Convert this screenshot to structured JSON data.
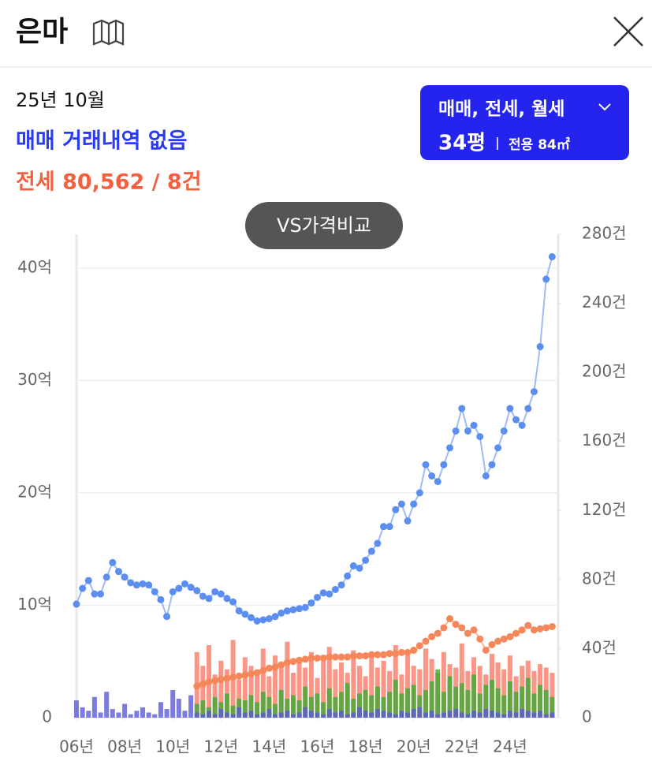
{
  "header": {
    "title": "은마"
  },
  "info": {
    "date": "25년 10월",
    "sale": "매매 거래내역 없음",
    "jeonse": "전세 80,562 / 8건"
  },
  "filter": {
    "types": "매매, 전세, 월세",
    "size": "34평",
    "area": "전용 84㎡"
  },
  "compare_button": "VS가격비교",
  "chart_data": {
    "type": "line",
    "x": [
      6,
      6.25,
      6.5,
      6.75,
      7,
      7.25,
      7.5,
      7.75,
      8,
      8.25,
      8.5,
      8.75,
      9,
      9.25,
      9.5,
      9.75,
      10,
      10.25,
      10.5,
      10.75,
      11,
      11.25,
      11.5,
      11.75,
      12,
      12.25,
      12.5,
      12.75,
      13,
      13.25,
      13.5,
      13.75,
      14,
      14.25,
      14.5,
      14.75,
      15,
      15.25,
      15.5,
      15.75,
      16,
      16.25,
      16.5,
      16.75,
      17,
      17.25,
      17.5,
      17.75,
      18,
      18.25,
      18.5,
      18.75,
      19,
      19.25,
      19.5,
      19.75,
      20,
      20.25,
      20.5,
      20.75,
      21,
      21.25,
      21.5,
      21.75,
      22,
      22.25,
      22.5,
      22.75,
      23,
      23.25,
      23.5,
      23.75,
      24,
      24.25,
      24.5,
      24.75,
      25,
      25.25,
      25.5,
      25.75
    ],
    "xlim": [
      6,
      26
    ],
    "xticks": [
      {
        "value": 6,
        "label": "06년"
      },
      {
        "value": 8,
        "label": "08년"
      },
      {
        "value": 10,
        "label": "10년"
      },
      {
        "value": 12,
        "label": "12년"
      },
      {
        "value": 14,
        "label": "14년"
      },
      {
        "value": 16,
        "label": "16년"
      },
      {
        "value": 18,
        "label": "18년"
      },
      {
        "value": 20,
        "label": "20년"
      },
      {
        "value": 22,
        "label": "22년"
      },
      {
        "value": 24,
        "label": "24년"
      }
    ],
    "ylim": [
      0,
      43
    ],
    "yticks": [
      0,
      {
        "value": 10,
        "label": "10억"
      },
      {
        "value": 20,
        "label": "20억"
      },
      {
        "value": 30,
        "label": "30억"
      },
      {
        "value": 40,
        "label": "40억"
      }
    ],
    "y2lim": [
      0,
      280
    ],
    "y2ticks": [
      0,
      {
        "value": 40,
        "label": "40건"
      },
      {
        "value": 80,
        "label": "80건"
      },
      {
        "value": 120,
        "label": "120건"
      },
      {
        "value": 160,
        "label": "160건"
      },
      {
        "value": 200,
        "label": "200건"
      },
      {
        "value": 240,
        "label": "240건"
      },
      {
        "value": 280,
        "label": "280건"
      }
    ],
    "grid": true,
    "series": [
      {
        "type": "bar",
        "axis": "y2",
        "color": "#fa7a68",
        "values": [
          null,
          null,
          null,
          null,
          null,
          null,
          null,
          null,
          null,
          null,
          null,
          null,
          null,
          null,
          null,
          null,
          null,
          null,
          null,
          null,
          38,
          30,
          42,
          25,
          33,
          28,
          45,
          22,
          35,
          30,
          27,
          40,
          24,
          36,
          31,
          44,
          26,
          33,
          29,
          38,
          23,
          35,
          41,
          28,
          32,
          26,
          39,
          30,
          24,
          37,
          29,
          33,
          27,
          42,
          25,
          36,
          30,
          28,
          40,
          34,
          26,
          38,
          31,
          29,
          43,
          27,
          35,
          30,
          25,
          37,
          32,
          28,
          36,
          24,
          30,
          33,
          27,
          31,
          29,
          26
        ]
      },
      {
        "type": "bar",
        "axis": "y2",
        "color": "#3faa32",
        "values": [
          null,
          null,
          null,
          null,
          null,
          null,
          null,
          null,
          null,
          null,
          null,
          null,
          null,
          null,
          null,
          null,
          null,
          null,
          null,
          null,
          8,
          10,
          6,
          12,
          9,
          14,
          7,
          11,
          10,
          13,
          9,
          15,
          12,
          8,
          16,
          11,
          13,
          10,
          18,
          12,
          14,
          9,
          17,
          12,
          15,
          20,
          11,
          14,
          16,
          13,
          18,
          12,
          15,
          22,
          14,
          17,
          19,
          13,
          16,
          21,
          28,
          15,
          24,
          18,
          20,
          16,
          25,
          14,
          19,
          22,
          17,
          13,
          21,
          15,
          18,
          23,
          14,
          19,
          16,
          12
        ]
      },
      {
        "type": "bar",
        "axis": "y2",
        "color": "#5a5ad8",
        "values": [
          10,
          6,
          4,
          12,
          3,
          15,
          5,
          3,
          8,
          2,
          4,
          6,
          3,
          2,
          9,
          5,
          16,
          11,
          4,
          13,
          3,
          2,
          4,
          2,
          5,
          3,
          2,
          6,
          3,
          4,
          2,
          3,
          5,
          2,
          3,
          4,
          2,
          3,
          6,
          4,
          3,
          2,
          5,
          3,
          4,
          2,
          3,
          6,
          4,
          3,
          5,
          4,
          3,
          2,
          4,
          3,
          5,
          6,
          3,
          4,
          2,
          3,
          4,
          5,
          3,
          2,
          4,
          3,
          5,
          4,
          3,
          2,
          4,
          3,
          5,
          4,
          3,
          4,
          2,
          3
        ]
      },
      {
        "color": "#5b8ef0",
        "values": [
          10.1,
          11.5,
          12.2,
          11.0,
          11.0,
          12.5,
          13.8,
          13.0,
          12.5,
          12.0,
          11.8,
          11.9,
          11.8,
          11.2,
          10.5,
          9.0,
          11.2,
          11.5,
          11.9,
          11.6,
          11.3,
          10.8,
          10.6,
          11.2,
          11.0,
          10.6,
          10.3,
          9.5,
          9.2,
          8.9,
          8.6,
          8.7,
          8.8,
          9.0,
          9.3,
          9.5,
          9.6,
          9.7,
          9.8,
          10.2,
          10.7,
          11.1,
          11.0,
          11.4,
          11.8,
          12.6,
          13.5,
          13.3,
          14.0,
          14.8,
          15.5,
          17.0,
          17.0,
          18.5,
          19.0,
          17.5,
          19.0,
          20.0,
          22.5,
          21.5,
          21.0,
          22.5,
          24.0,
          25.5,
          27.5,
          25.5,
          26.0,
          25.0,
          21.5,
          22.5,
          24.0,
          25.5,
          27.5,
          26.5,
          26.0,
          27.5,
          29.0,
          33.0,
          39.0,
          41.0
        ]
      },
      {
        "color": "#f5875a",
        "values": [
          null,
          null,
          null,
          null,
          null,
          null,
          null,
          null,
          null,
          null,
          null,
          null,
          null,
          null,
          null,
          null,
          null,
          null,
          null,
          null,
          2.8,
          3.0,
          3.2,
          3.3,
          3.4,
          3.5,
          3.6,
          3.7,
          3.8,
          3.9,
          4.0,
          4.2,
          4.4,
          4.5,
          4.7,
          4.9,
          5.0,
          5.1,
          5.2,
          5.3,
          5.3,
          5.3,
          5.4,
          5.4,
          5.4,
          5.4,
          5.5,
          5.5,
          5.5,
          5.6,
          5.6,
          5.6,
          5.7,
          5.7,
          5.8,
          5.8,
          6.0,
          6.4,
          6.8,
          7.2,
          7.5,
          8.0,
          8.8,
          8.3,
          8.0,
          7.5,
          7.8,
          7.0,
          6.0,
          6.5,
          6.8,
          7.0,
          7.2,
          7.5,
          7.8,
          8.2,
          7.8,
          7.9,
          8.0,
          8.1
        ]
      }
    ]
  }
}
